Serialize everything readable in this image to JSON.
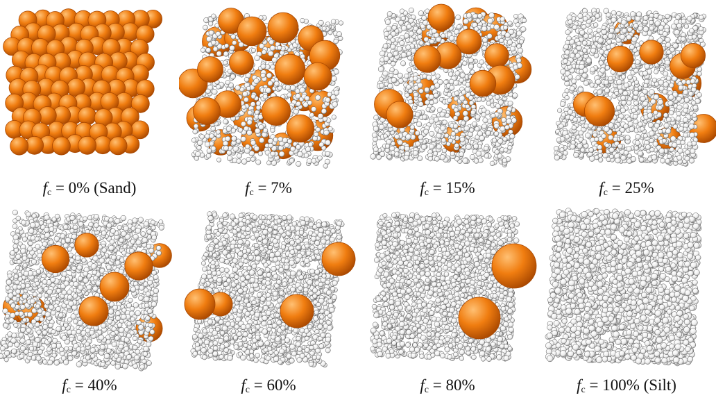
{
  "panels": [
    {
      "symbol": "f",
      "subscript": "c",
      "equals": "=",
      "value": "0%",
      "note": "(Sand)",
      "sand_count": 130,
      "silt_count": 0
    },
    {
      "symbol": "f",
      "subscript": "c",
      "equals": "=",
      "value": "7%",
      "note": "",
      "sand_count": 28,
      "silt_count": 900
    },
    {
      "symbol": "f",
      "subscript": "c",
      "equals": "=",
      "value": "15%",
      "note": "",
      "sand_count": 18,
      "silt_count": 1300
    },
    {
      "symbol": "f",
      "subscript": "c",
      "equals": "=",
      "value": "25%",
      "note": "",
      "sand_count": 12,
      "silt_count": 1500
    },
    {
      "symbol": "f",
      "subscript": "c",
      "equals": "=",
      "value": "40%",
      "note": "",
      "sand_count": 9,
      "silt_count": 1800
    },
    {
      "symbol": "f",
      "subscript": "c",
      "equals": "=",
      "value": "60%",
      "note": "",
      "sand_count": 3,
      "silt_count": 1900
    },
    {
      "symbol": "f",
      "subscript": "c",
      "equals": "=",
      "value": "80%",
      "note": "",
      "sand_count": 2,
      "silt_count": 1900
    },
    {
      "symbol": "f",
      "subscript": "c",
      "equals": "=",
      "value": "100%",
      "note": "(Silt)",
      "sand_count": 0,
      "silt_count": 1900
    }
  ],
  "colors": {
    "sand": "#f07d10",
    "sand_light": "#ffc073",
    "sand_dark": "#a84700",
    "silt": "#eeeeee",
    "silt_edge": "#555555"
  }
}
